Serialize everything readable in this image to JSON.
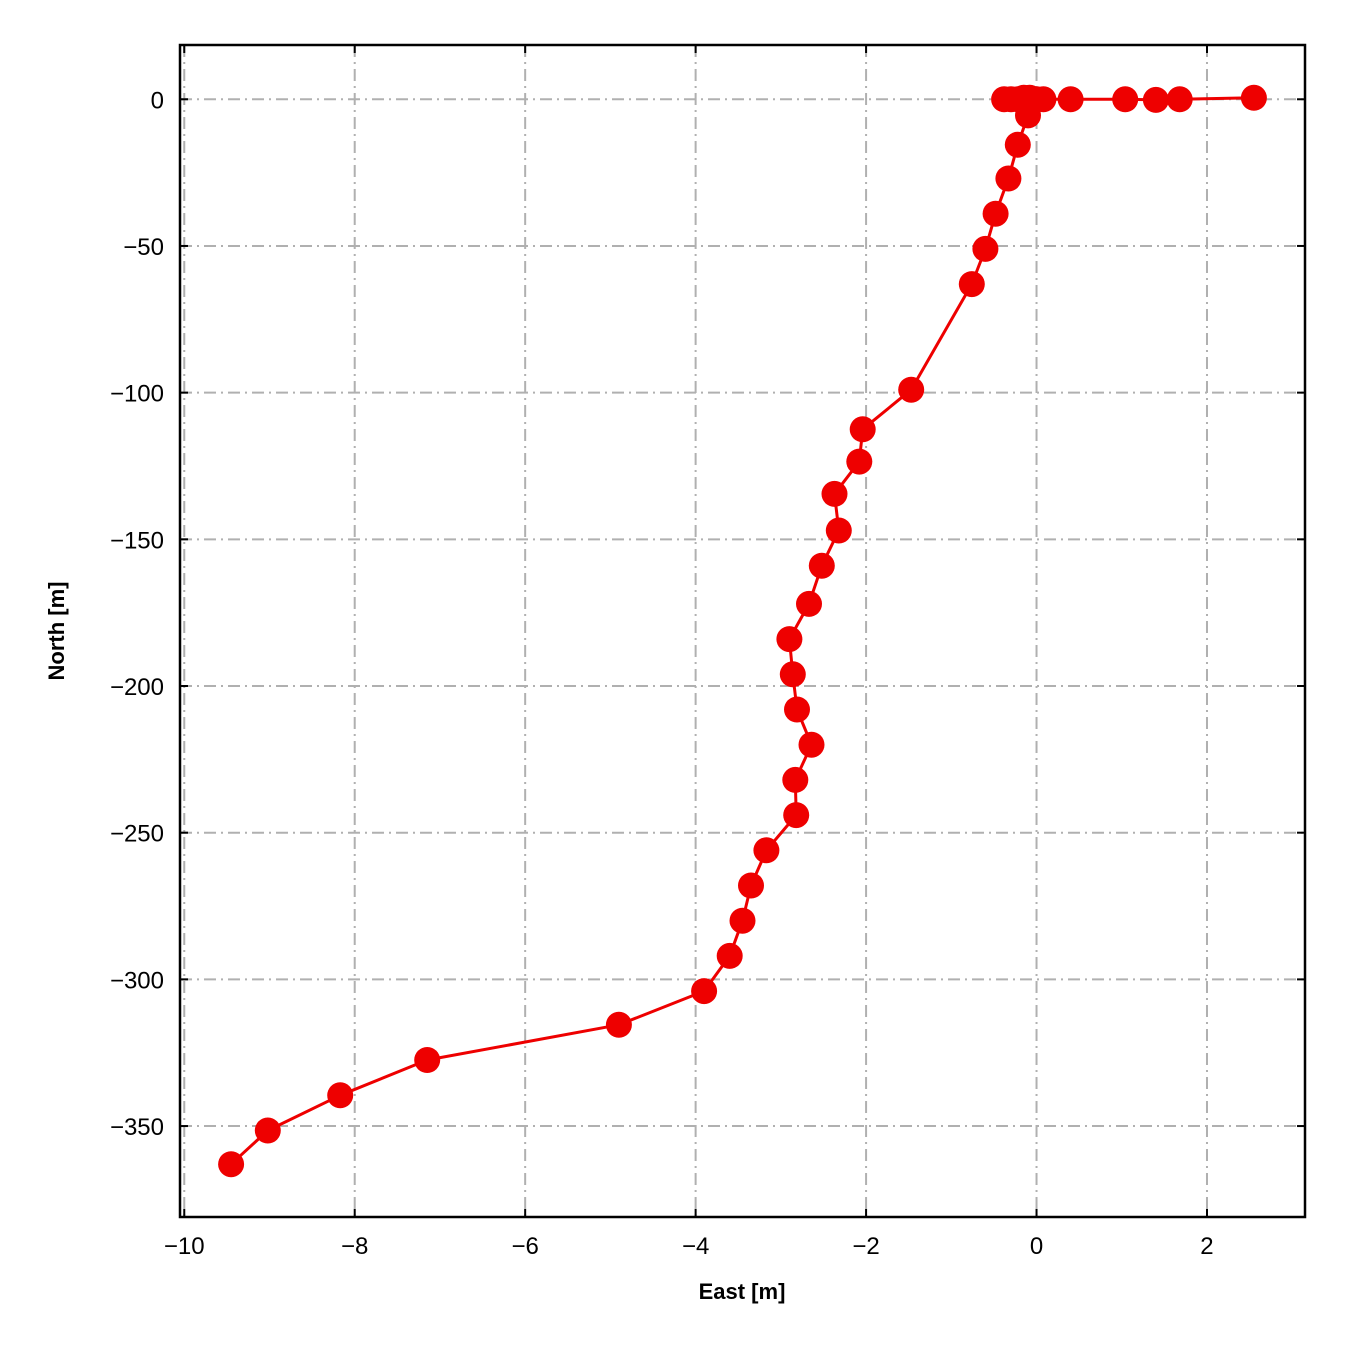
{
  "chart_data": {
    "type": "line",
    "xlabel": "East [m]",
    "ylabel": "North [m]",
    "xlim": [
      -10.05,
      3.15
    ],
    "ylim": [
      -381,
      18.5
    ],
    "xticks": [
      -10,
      -8,
      -6,
      -4,
      -2,
      0,
      2
    ],
    "yticks": [
      0,
      -50,
      -100,
      -150,
      -200,
      -250,
      -300,
      -350
    ],
    "xtick_labels": [
      "−10",
      "−8",
      "−6",
      "−4",
      "−2",
      "0",
      "2"
    ],
    "ytick_labels": [
      "0",
      "−50",
      "−100",
      "−150",
      "−200",
      "−250",
      "−300",
      "−350"
    ],
    "grid": true,
    "grid_style": "dash-dot",
    "series": [
      {
        "color": "#ee0000",
        "marker": "circle",
        "x": [
          2.55,
          1.68,
          1.4,
          1.04,
          0.4,
          0.08,
          0.0,
          -0.08,
          -0.15,
          -0.22,
          -0.3,
          -0.38,
          -0.1,
          -0.22,
          -0.33,
          -0.48,
          -0.6,
          -0.76,
          -1.47,
          -2.04,
          -2.08,
          -2.37,
          -2.32,
          -2.52,
          -2.67,
          -2.9,
          -2.86,
          -2.81,
          -2.64,
          -2.83,
          -2.82,
          -3.17,
          -3.35,
          -3.45,
          -3.6,
          -3.9,
          -4.9,
          -7.15,
          -8.17,
          -9.02,
          -9.45
        ],
        "y": [
          0.5,
          0.0,
          -0.2,
          0.0,
          0.0,
          0.0,
          0.0,
          0.5,
          0.5,
          0.0,
          0.0,
          0.0,
          -5.5,
          -15.5,
          -27,
          -39,
          -51,
          -63,
          -99,
          -112.5,
          -123.5,
          -134.5,
          -147,
          -159,
          -172,
          -184,
          -196,
          -208,
          -220,
          -232,
          -244,
          -256,
          -268,
          -280,
          -292,
          -304,
          -315.5,
          -327.5,
          -339.5,
          -351.5,
          -363
        ]
      }
    ]
  }
}
